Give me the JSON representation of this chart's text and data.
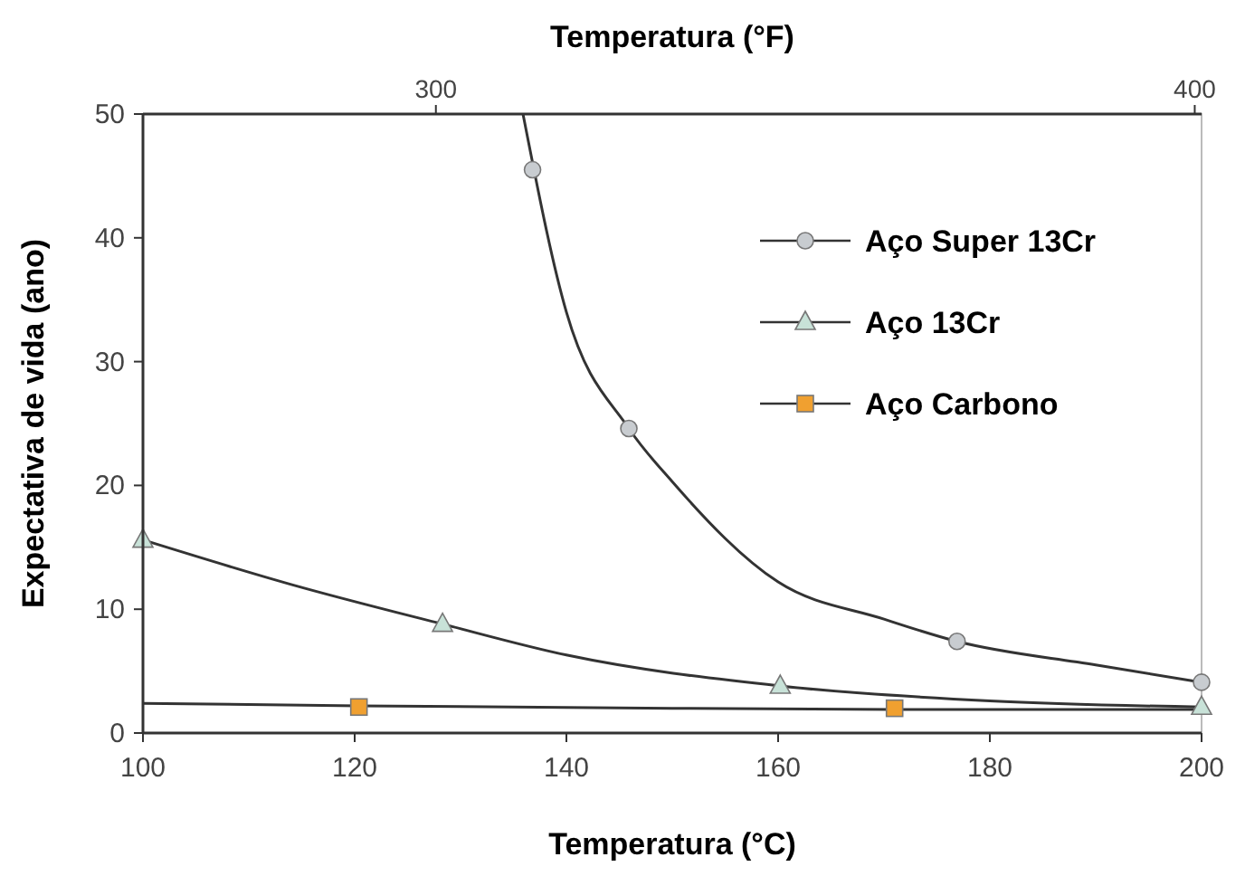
{
  "chart_data": {
    "type": "scatter",
    "xlabel": "Temperatura (°C)",
    "ylabel": "Expectativa de vida (ano)",
    "x2label": "Temperatura (°F)",
    "xlim": [
      100,
      200
    ],
    "xticks": [
      100,
      120,
      140,
      160,
      180,
      200
    ],
    "ylim": [
      0,
      50
    ],
    "yticks": [
      0,
      10,
      20,
      30,
      40,
      50
    ],
    "x2lim": [
      261.4,
      400.9
    ],
    "x2ticks": [
      300,
      400
    ],
    "grid": false,
    "legend": "top right",
    "series": [
      {
        "type": "line",
        "color": "#333333",
        "marker": "none",
        "x": [
          135.9,
          140,
          145.9,
          150,
          160,
          170,
          176.9,
          190,
          200
        ],
        "values": [
          50,
          34,
          24.6,
          20.3,
          12.2,
          9.2,
          7.4,
          5.5,
          4.1
        ]
      },
      {
        "type": "line",
        "color": "#333333",
        "marker": "none",
        "x": [
          100,
          114,
          128.3,
          140,
          160.2,
          180,
          200
        ],
        "values": [
          15.6,
          12,
          8.8,
          6.3,
          3.8,
          2.6,
          2.1
        ]
      },
      {
        "type": "line",
        "color": "#333333",
        "marker": "none",
        "x": [
          100,
          120.4,
          150,
          171,
          200
        ],
        "values": [
          2.4,
          2.2,
          2,
          1.9,
          1.9
        ]
      },
      {
        "type": "scatter",
        "name": "Aço Super 13Cr",
        "color": "#c8ccd0",
        "marker": "circle",
        "x": [
          136.8,
          145.9,
          176.9,
          200
        ],
        "values": [
          45.5,
          24.6,
          7.4,
          4.1
        ]
      },
      {
        "type": "scatter",
        "name": "Aço 13Cr",
        "color": "#c8e2d8",
        "marker": "triangle",
        "x": [
          100,
          128.3,
          160.2,
          200
        ],
        "values": [
          15.6,
          8.8,
          3.8,
          2.1
        ]
      },
      {
        "type": "scatter",
        "name": "Aço Carbono",
        "color": "#f0a030",
        "marker": "square",
        "x": [
          120.4,
          171
        ],
        "values": [
          2.1,
          2.0
        ]
      }
    ]
  }
}
